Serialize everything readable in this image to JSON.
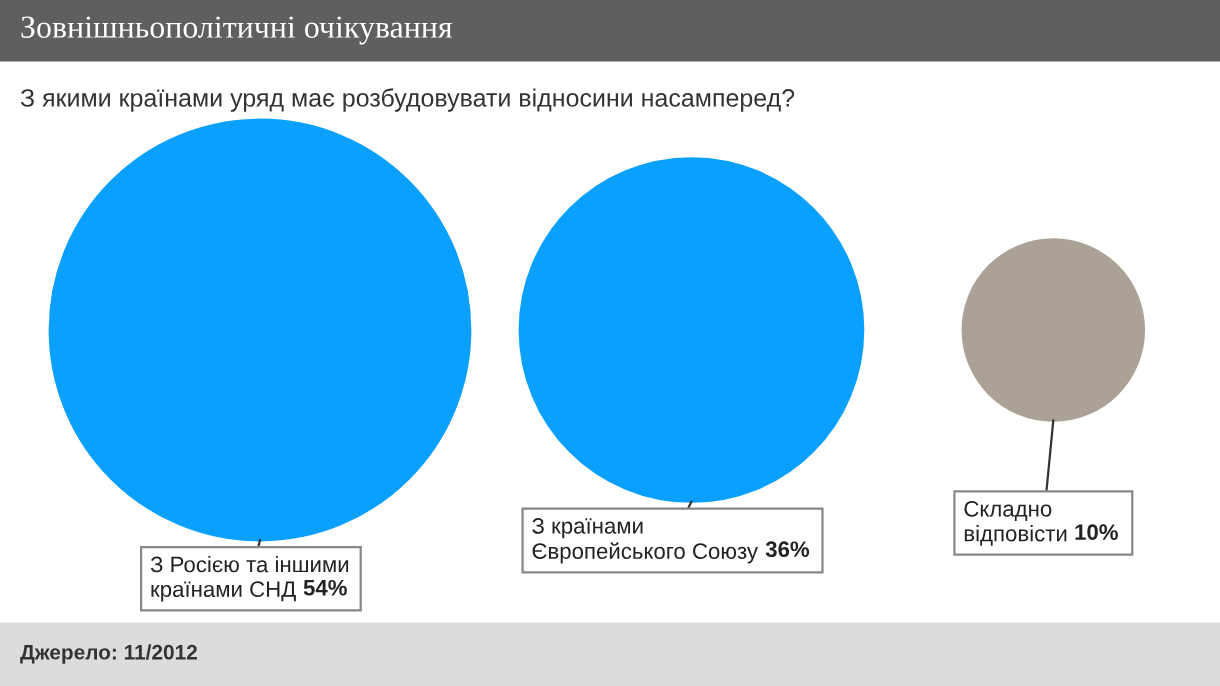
{
  "chart_data": {
    "type": "other",
    "title": "Зовнішньополітичні очікування",
    "subtitle": "З якими країнами уряд має розбудовувати відносини насамперед?",
    "categories": [
      "З Росією та іншими країнами СНД",
      "З країнами Європейського Союзу",
      "Складно відповісти"
    ],
    "values": [
      54,
      36,
      10
    ],
    "value_labels": [
      "54%",
      "36%",
      "10%"
    ],
    "colors": [
      "#0aa0ff",
      "#0aa0ff",
      "#aba196"
    ],
    "annotations": [
      "Джерело: 11/2012"
    ]
  }
}
